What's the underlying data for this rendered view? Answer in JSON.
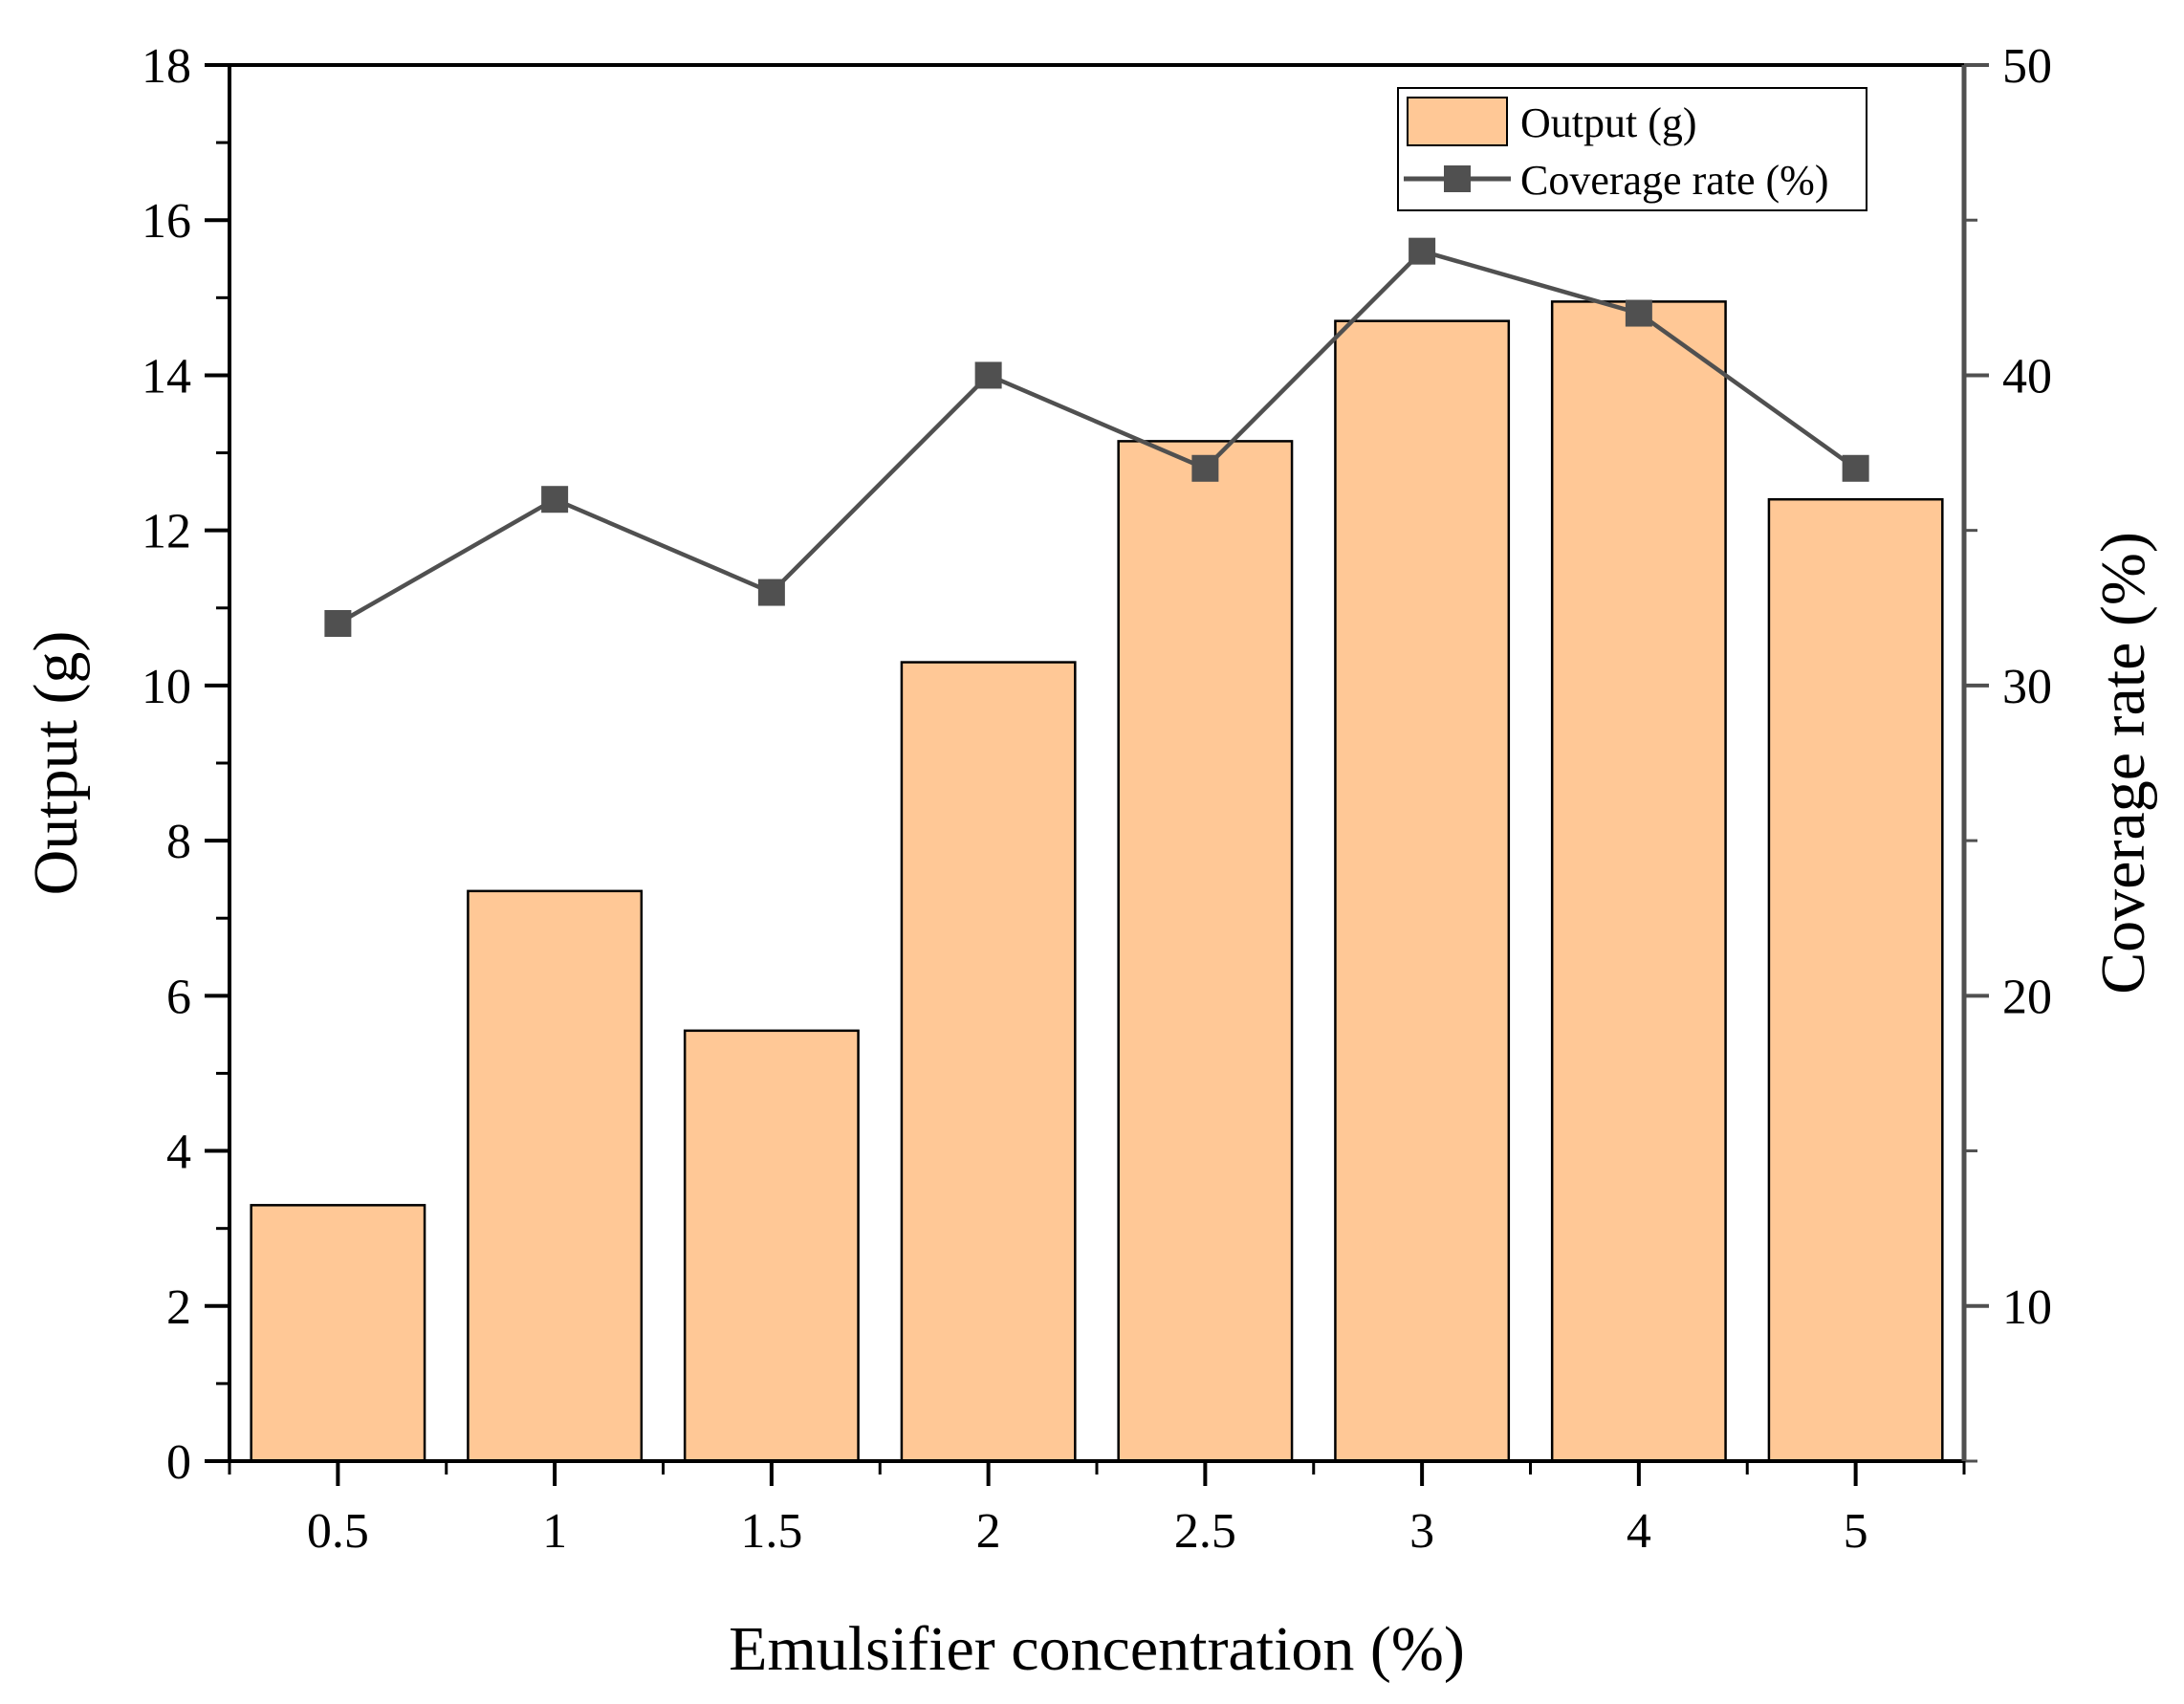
{
  "chart_data": {
    "type": "bar",
    "title": "",
    "categories": [
      "0.5",
      "1",
      "1.5",
      "2",
      "2.5",
      "3",
      "4",
      "5"
    ],
    "xlabel": "Emulsifier concentration  (%)",
    "series": [
      {
        "name": "Output (g)",
        "kind": "bar",
        "axis": "left",
        "values": [
          3.3,
          7.35,
          5.55,
          10.3,
          13.15,
          14.7,
          14.95,
          12.4
        ],
        "color": "#FFC896"
      },
      {
        "name": "Coverage rate (%)",
        "kind": "line",
        "marker": "square",
        "axis": "right",
        "values": [
          32,
          36,
          33,
          40,
          37,
          44,
          42,
          37
        ],
        "color": "#505050"
      }
    ],
    "y_left": {
      "label": "Output (g)",
      "ylim": [
        0,
        18
      ],
      "ticks": [
        "0",
        "2",
        "4",
        "6",
        "8",
        "10",
        "12",
        "14",
        "16",
        "18"
      ]
    },
    "y_right": {
      "label": "Coverage rate (%)",
      "ylim": [
        5,
        50
      ],
      "ticks": [
        "10",
        "20",
        "30",
        "40",
        "50"
      ]
    },
    "legend_position": "top-right",
    "grid": false
  }
}
